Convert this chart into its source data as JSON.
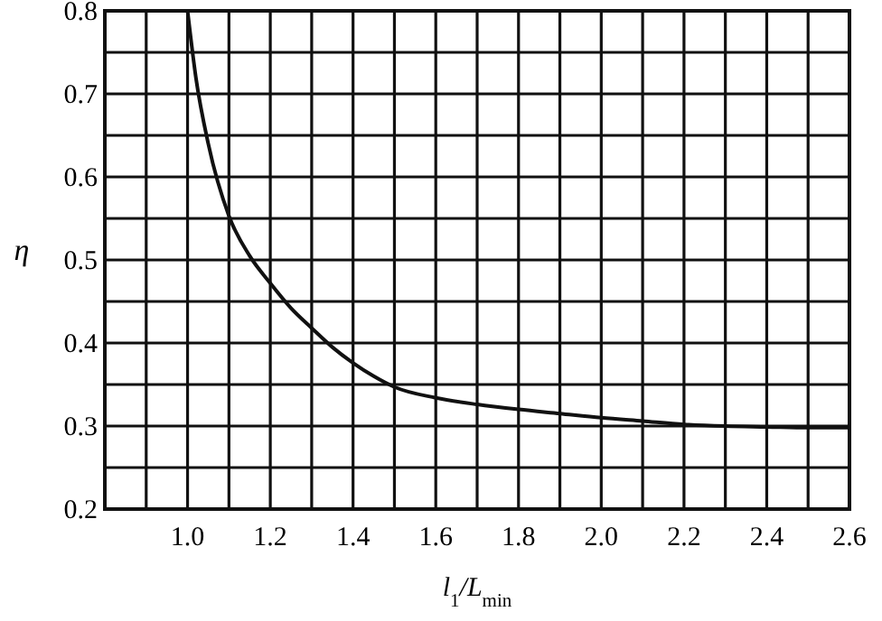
{
  "chart_data": {
    "type": "line",
    "xlabel": "l$_{1}$/L$_{min}$",
    "ylabel": "η",
    "x": [
      1.0,
      1.02,
      1.05,
      1.1,
      1.15,
      1.2,
      1.25,
      1.3,
      1.35,
      1.4,
      1.45,
      1.5,
      1.6,
      1.7,
      1.8,
      1.9,
      2.0,
      2.1,
      2.2,
      2.3,
      2.4,
      2.5,
      2.6
    ],
    "series": [
      {
        "color": "#111111",
        "values": [
          0.8,
          0.72,
          0.64,
          0.553,
          0.505,
          0.472,
          0.442,
          0.418,
          0.395,
          0.376,
          0.36,
          0.347,
          0.334,
          0.326,
          0.32,
          0.315,
          0.31,
          0.306,
          0.302,
          0.3,
          0.299,
          0.298,
          0.298
        ]
      }
    ],
    "xlim": [
      0.8,
      2.6
    ],
    "ylim": [
      0.2,
      0.8
    ],
    "xticks": [
      {
        "value": 0.9,
        "label": null
      },
      {
        "value": 1.0,
        "label": "1.0"
      },
      {
        "value": 1.1,
        "label": null
      },
      1.2,
      {
        "value": 1.3,
        "label": null
      },
      1.4,
      {
        "value": 1.5,
        "label": null
      },
      1.6,
      {
        "value": 1.7,
        "label": null
      },
      1.8,
      {
        "value": 1.9,
        "label": null
      },
      {
        "value": 2.0,
        "label": "2.0"
      },
      {
        "value": 2.1,
        "label": null
      },
      2.2,
      {
        "value": 2.3,
        "label": null
      },
      2.4,
      {
        "value": 2.5,
        "label": null
      },
      2.6
    ],
    "yticks": [
      0.2,
      {
        "value": 0.25,
        "label": null
      },
      0.3,
      {
        "value": 0.35,
        "label": null
      },
      0.4,
      {
        "value": 0.45,
        "label": null
      },
      0.5,
      {
        "value": 0.55,
        "label": null
      },
      0.6,
      {
        "value": 0.65,
        "label": null
      },
      0.7,
      {
        "value": 0.75,
        "label": null
      },
      0.8
    ],
    "grid": true,
    "marker": "none",
    "line_style": "solid"
  }
}
